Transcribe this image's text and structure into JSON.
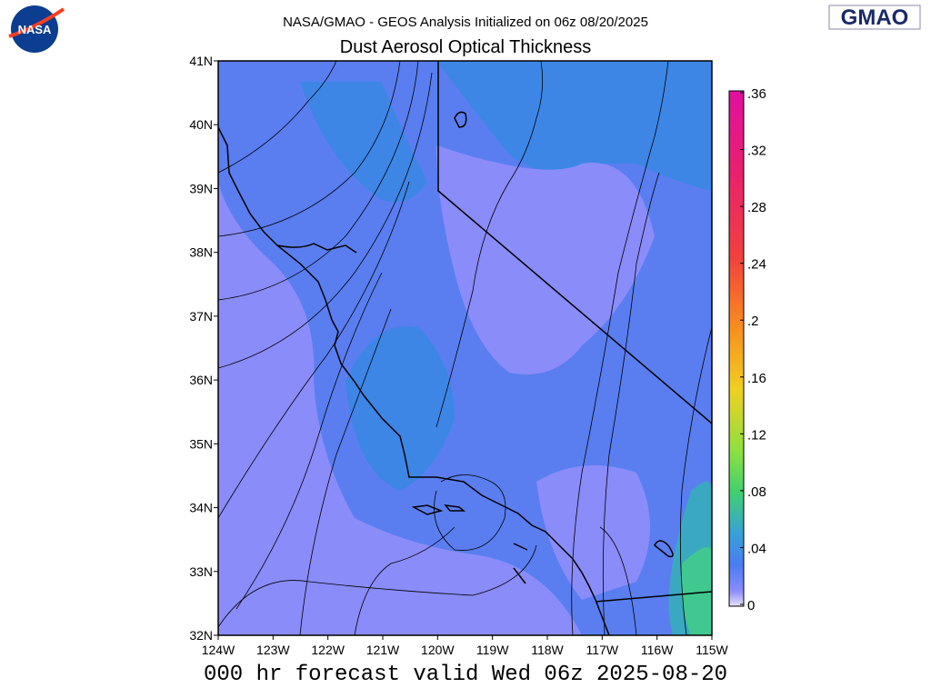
{
  "header": {
    "subtitle": "NASA/GMAO - GEOS Analysis Initialized on 06z 08/20/2025",
    "title": "Dust Aerosol Optical Thickness"
  },
  "logos": {
    "left": "NASA",
    "right": "GMAO"
  },
  "map": {
    "xlim": [
      -124,
      -115
    ],
    "ylim": [
      32,
      41
    ],
    "xticks": [
      {
        "value": -124,
        "label": "124W"
      },
      {
        "value": -123,
        "label": "123W"
      },
      {
        "value": -122,
        "label": "122W"
      },
      {
        "value": -121,
        "label": "121W"
      },
      {
        "value": -120,
        "label": "120W"
      },
      {
        "value": -119,
        "label": "119W"
      },
      {
        "value": -118,
        "label": "118W"
      },
      {
        "value": -117,
        "label": "117W"
      },
      {
        "value": -116,
        "label": "116W"
      },
      {
        "value": -115,
        "label": "115W"
      }
    ],
    "yticks": [
      {
        "value": 32,
        "label": "32N"
      },
      {
        "value": 33,
        "label": "33N"
      },
      {
        "value": 34,
        "label": "34N"
      },
      {
        "value": 35,
        "label": "35N"
      },
      {
        "value": 36,
        "label": "36N"
      },
      {
        "value": 37,
        "label": "37N"
      },
      {
        "value": 38,
        "label": "38N"
      },
      {
        "value": 39,
        "label": "39N"
      },
      {
        "value": 40,
        "label": "40N"
      },
      {
        "value": 41,
        "label": "41N"
      }
    ]
  },
  "colorbar": {
    "lim": [
      0,
      0.36
    ],
    "ticks": [
      0,
      {
        "value": 0.04,
        "label": ".04"
      },
      {
        "value": 0.08,
        "label": ".08"
      },
      {
        "value": 0.12,
        "label": ".12"
      },
      {
        "value": 0.16,
        "label": ".16"
      },
      {
        "value": 0.2,
        "label": ".2"
      },
      {
        "value": 0.24,
        "label": ".24"
      },
      {
        "value": 0.28,
        "label": ".28"
      },
      {
        "value": 0.32,
        "label": ".32"
      },
      {
        "value": 0.36,
        "label": ".36"
      }
    ]
  },
  "footer": "000 hr forecast valid Wed 06z 2025-08-20"
}
